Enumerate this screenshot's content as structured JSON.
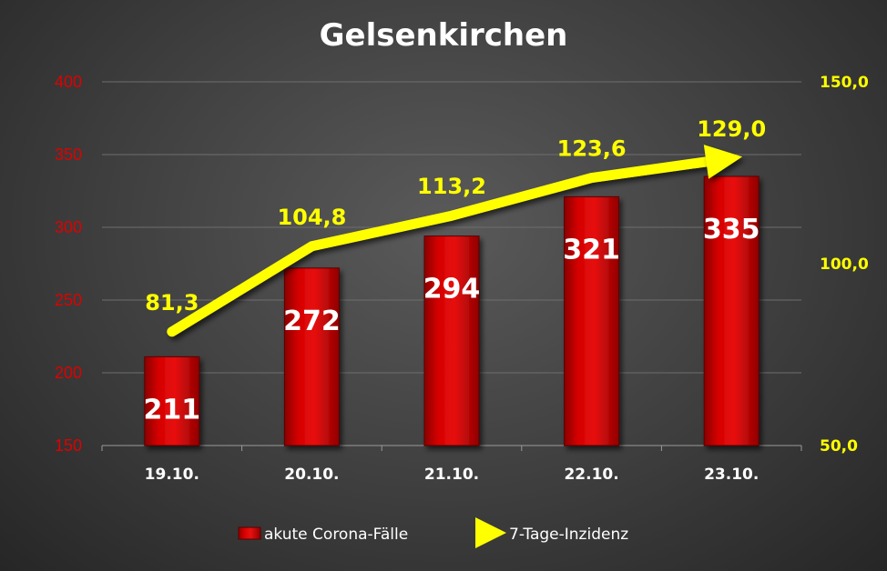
{
  "chart_data": {
    "type": "bar",
    "title": "Gelsenkirchen",
    "categories": [
      "19.10.",
      "20.10.",
      "21.10.",
      "22.10.",
      "23.10."
    ],
    "series": [
      {
        "name": "akute Corona-Fälle",
        "type": "bar",
        "axis": "left",
        "color": "#cc0000",
        "values": [
          211,
          272,
          294,
          321,
          335
        ],
        "labels": [
          "211",
          "272",
          "294",
          "321",
          "335"
        ]
      },
      {
        "name": "7-Tage-Inzidenz",
        "type": "line",
        "axis": "right",
        "color": "#ffff00",
        "values": [
          81.3,
          104.8,
          113.2,
          123.6,
          129.0
        ],
        "labels": [
          "81,3",
          "104,8",
          "113,2",
          "123,6",
          "129,0"
        ]
      }
    ],
    "y_left": {
      "min": 150,
      "max": 400,
      "ticks": [
        "150",
        "200",
        "250",
        "300",
        "350",
        "400"
      ],
      "color": "#e00000"
    },
    "y_right": {
      "min": 50,
      "max": 150,
      "ticks": [
        "50,0",
        "100,0",
        "150,0"
      ],
      "color": "#ffff00"
    },
    "grid": true,
    "legend_position": "bottom"
  }
}
